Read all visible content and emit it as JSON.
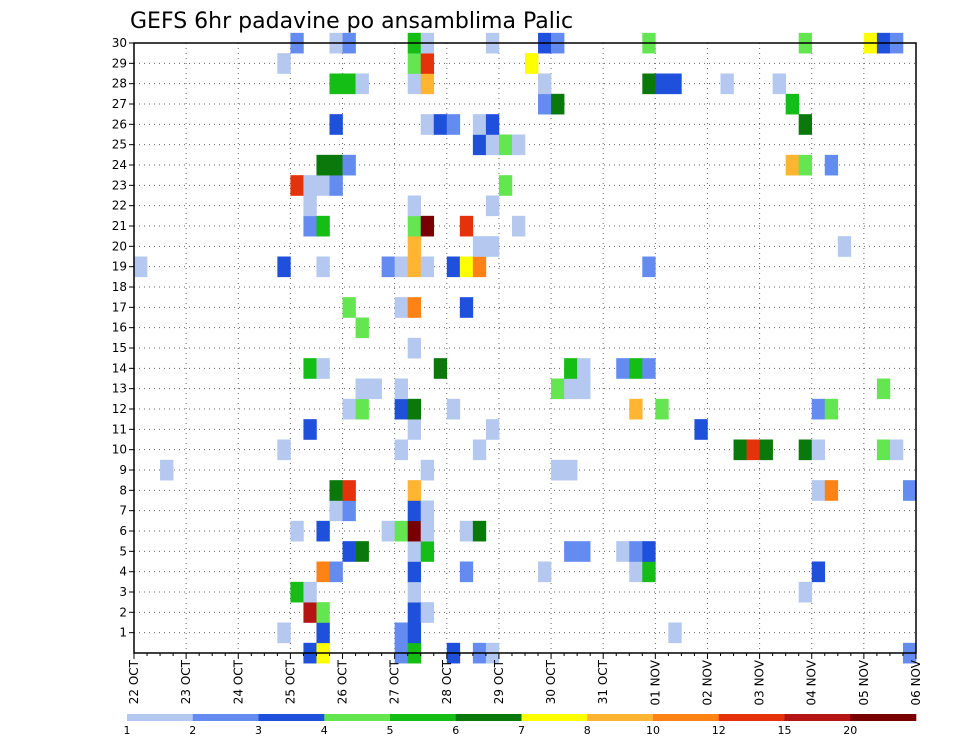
{
  "chart_data": {
    "type": "heatmap",
    "title": "GEFS 6hr padavine po ansamblima Palic",
    "xlabel": "",
    "ylabel": "",
    "x_ticks": [
      "22 OCT",
      "23 OCT",
      "24 OCT",
      "25 OCT",
      "26 OCT",
      "27 OCT",
      "28 OCT",
      "29 OCT",
      "30 OCT",
      "31 OCT",
      "01 NOV",
      "02 NOV",
      "03 NOV",
      "04 NOV",
      "05 NOV",
      "06 NOV"
    ],
    "x_range": [
      0,
      60
    ],
    "x_unit": "6-hour steps from 22 OCT 00Z",
    "y_ticks": [
      1,
      2,
      3,
      4,
      5,
      6,
      7,
      8,
      9,
      10,
      11,
      12,
      13,
      14,
      15,
      16,
      17,
      18,
      19,
      20,
      21,
      22,
      23,
      24,
      25,
      26,
      27,
      28,
      29,
      30
    ],
    "y_range": [
      0,
      30
    ],
    "grid": true,
    "legend": {
      "placement": "bottom",
      "labels": [
        "1",
        "2",
        "3",
        "4",
        "5",
        "6",
        "7",
        "8",
        "10",
        "12",
        "15",
        "20"
      ],
      "colors": [
        "#b4c8f0",
        "#648cf0",
        "#1e50dc",
        "#64e650",
        "#14be14",
        "#0a780a",
        "#ffff00",
        "#ffb432",
        "#ff8214",
        "#e6320a",
        "#b41414",
        "#780000"
      ]
    },
    "palette": {
      "a": "#b4c8f0",
      "b": "#648cf0",
      "c": "#1e50dc",
      "d": "#64e650",
      "e": "#14be14",
      "f": "#0a780a",
      "g": "#ffff00",
      "h": "#ffb432",
      "i": "#ff8214",
      "j": "#e6320a",
      "k": "#b41414",
      "l": "#780000"
    },
    "rows": {
      "30": [
        [
          12,
          "b"
        ],
        [
          15,
          "a"
        ],
        [
          16,
          "b"
        ],
        [
          21,
          "e"
        ],
        [
          22,
          "a"
        ],
        [
          27,
          "a"
        ],
        [
          31,
          "c"
        ],
        [
          32,
          "b"
        ],
        [
          39,
          "d"
        ],
        [
          51,
          "d"
        ],
        [
          56,
          "g"
        ],
        [
          57,
          "c"
        ],
        [
          58,
          "b"
        ]
      ],
      "29": [
        [
          11,
          "a"
        ],
        [
          21,
          "d"
        ],
        [
          22,
          "j"
        ],
        [
          30,
          "g"
        ]
      ],
      "28": [
        [
          15,
          "e"
        ],
        [
          16,
          "e"
        ],
        [
          17,
          "a"
        ],
        [
          21,
          "a"
        ],
        [
          22,
          "h"
        ],
        [
          31,
          "a"
        ],
        [
          39,
          "f"
        ],
        [
          40,
          "c"
        ],
        [
          41,
          "c"
        ],
        [
          45,
          "a"
        ],
        [
          49,
          "a"
        ]
      ],
      "27": [
        [
          31,
          "b"
        ],
        [
          32,
          "f"
        ],
        [
          50,
          "e"
        ]
      ],
      "26": [
        [
          15,
          "c"
        ],
        [
          22,
          "a"
        ],
        [
          23,
          "c"
        ],
        [
          24,
          "b"
        ],
        [
          26,
          "a"
        ],
        [
          27,
          "c"
        ],
        [
          51,
          "f"
        ]
      ],
      "25": [
        [
          26,
          "c"
        ],
        [
          27,
          "a"
        ],
        [
          28,
          "d"
        ],
        [
          29,
          "a"
        ]
      ],
      "24": [
        [
          14,
          "f"
        ],
        [
          15,
          "f"
        ],
        [
          16,
          "b"
        ],
        [
          50,
          "h"
        ],
        [
          51,
          "d"
        ],
        [
          53,
          "b"
        ]
      ],
      "23": [
        [
          12,
          "j"
        ],
        [
          13,
          "a"
        ],
        [
          14,
          "a"
        ],
        [
          15,
          "b"
        ],
        [
          28,
          "d"
        ]
      ],
      "22": [
        [
          13,
          "a"
        ],
        [
          21,
          "a"
        ],
        [
          27,
          "a"
        ]
      ],
      "21": [
        [
          13,
          "b"
        ],
        [
          14,
          "e"
        ],
        [
          21,
          "d"
        ],
        [
          22,
          "l"
        ],
        [
          25,
          "j"
        ],
        [
          29,
          "a"
        ]
      ],
      "20": [
        [
          21,
          "h"
        ],
        [
          26,
          "a"
        ],
        [
          27,
          "a"
        ],
        [
          54,
          "a"
        ]
      ],
      "19": [
        [
          0,
          "a"
        ],
        [
          11,
          "c"
        ],
        [
          14,
          "a"
        ],
        [
          19,
          "b"
        ],
        [
          20,
          "a"
        ],
        [
          21,
          "h"
        ],
        [
          22,
          "a"
        ],
        [
          24,
          "c"
        ],
        [
          25,
          "g"
        ],
        [
          26,
          "i"
        ],
        [
          39,
          "b"
        ]
      ],
      "17": [
        [
          16,
          "d"
        ],
        [
          20,
          "a"
        ],
        [
          21,
          "i"
        ],
        [
          25,
          "c"
        ]
      ],
      "16": [
        [
          17,
          "d"
        ]
      ],
      "15": [
        [
          21,
          "a"
        ]
      ],
      "14": [
        [
          13,
          "e"
        ],
        [
          14,
          "a"
        ],
        [
          23,
          "f"
        ],
        [
          33,
          "e"
        ],
        [
          34,
          "a"
        ],
        [
          37,
          "b"
        ],
        [
          38,
          "e"
        ],
        [
          39,
          "b"
        ]
      ],
      "13": [
        [
          17,
          "a"
        ],
        [
          18,
          "a"
        ],
        [
          20,
          "a"
        ],
        [
          32,
          "d"
        ],
        [
          33,
          "a"
        ],
        [
          34,
          "a"
        ],
        [
          57,
          "d"
        ]
      ],
      "12": [
        [
          16,
          "a"
        ],
        [
          17,
          "d"
        ],
        [
          20,
          "c"
        ],
        [
          21,
          "f"
        ],
        [
          24,
          "a"
        ],
        [
          38,
          "h"
        ],
        [
          40,
          "d"
        ],
        [
          52,
          "b"
        ],
        [
          53,
          "d"
        ]
      ],
      "11": [
        [
          13,
          "c"
        ],
        [
          21,
          "a"
        ],
        [
          27,
          "a"
        ],
        [
          43,
          "c"
        ]
      ],
      "10": [
        [
          11,
          "a"
        ],
        [
          20,
          "a"
        ],
        [
          26,
          "a"
        ],
        [
          46,
          "f"
        ],
        [
          47,
          "j"
        ],
        [
          48,
          "f"
        ],
        [
          51,
          "f"
        ],
        [
          52,
          "a"
        ],
        [
          57,
          "d"
        ],
        [
          58,
          "a"
        ]
      ],
      "9": [
        [
          2,
          "a"
        ],
        [
          22,
          "a"
        ],
        [
          32,
          "a"
        ],
        [
          33,
          "a"
        ]
      ],
      "8": [
        [
          15,
          "f"
        ],
        [
          16,
          "j"
        ],
        [
          21,
          "h"
        ],
        [
          52,
          "a"
        ],
        [
          53,
          "i"
        ],
        [
          59,
          "b"
        ]
      ],
      "7": [
        [
          15,
          "a"
        ],
        [
          16,
          "b"
        ],
        [
          21,
          "c"
        ],
        [
          22,
          "a"
        ]
      ],
      "6": [
        [
          12,
          "a"
        ],
        [
          14,
          "c"
        ],
        [
          19,
          "a"
        ],
        [
          20,
          "d"
        ],
        [
          21,
          "l"
        ],
        [
          22,
          "a"
        ],
        [
          25,
          "a"
        ],
        [
          26,
          "f"
        ]
      ],
      "5": [
        [
          16,
          "c"
        ],
        [
          17,
          "f"
        ],
        [
          21,
          "a"
        ],
        [
          22,
          "e"
        ],
        [
          33,
          "b"
        ],
        [
          34,
          "b"
        ],
        [
          37,
          "a"
        ],
        [
          38,
          "b"
        ],
        [
          39,
          "c"
        ]
      ],
      "4": [
        [
          14,
          "i"
        ],
        [
          15,
          "b"
        ],
        [
          21,
          "c"
        ],
        [
          25,
          "b"
        ],
        [
          31,
          "a"
        ],
        [
          38,
          "a"
        ],
        [
          39,
          "e"
        ],
        [
          52,
          "c"
        ]
      ],
      "3": [
        [
          12,
          "e"
        ],
        [
          13,
          "a"
        ],
        [
          21,
          "a"
        ],
        [
          51,
          "a"
        ]
      ],
      "2": [
        [
          13,
          "k"
        ],
        [
          14,
          "d"
        ],
        [
          21,
          "c"
        ],
        [
          22,
          "a"
        ]
      ],
      "1": [
        [
          11,
          "a"
        ],
        [
          14,
          "c"
        ],
        [
          20,
          "b"
        ],
        [
          21,
          "c"
        ],
        [
          41,
          "a"
        ]
      ],
      "0": [
        [
          13,
          "c"
        ],
        [
          14,
          "g"
        ],
        [
          20,
          "b"
        ],
        [
          21,
          "e"
        ],
        [
          24,
          "c"
        ],
        [
          26,
          "b"
        ],
        [
          27,
          "a"
        ],
        [
          59,
          "b"
        ]
      ]
    }
  }
}
